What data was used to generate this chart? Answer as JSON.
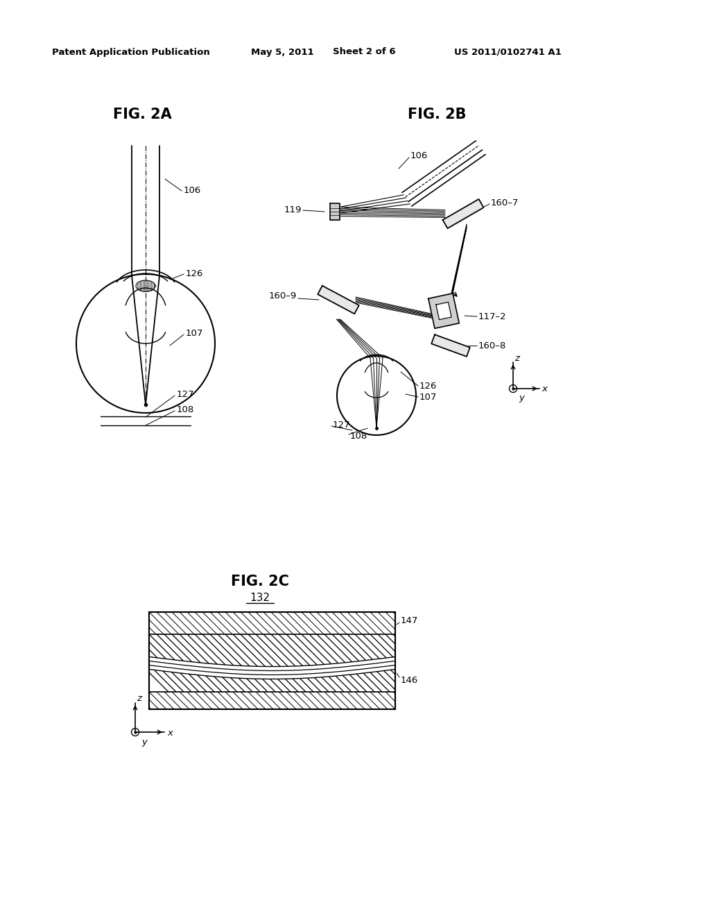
{
  "background_color": "#ffffff",
  "header_text": "Patent Application Publication",
  "header_date": "May 5, 2011",
  "header_sheet": "Sheet 2 of 6",
  "header_patent": "US 2011/0102741 A1",
  "fig2a_title": "FIG. 2A",
  "fig2b_title": "FIG. 2B",
  "fig2c_title": "FIG. 2C"
}
